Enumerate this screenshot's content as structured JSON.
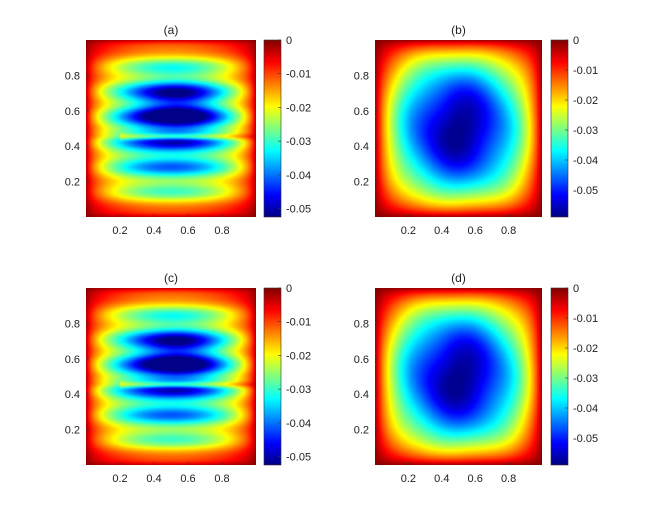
{
  "chart_data": [
    {
      "type": "heatmap",
      "title": "(a)",
      "xticks": [
        "0.2",
        "0.4",
        "0.6",
        "0.8"
      ],
      "yticks": [
        "0.2",
        "0.4",
        "0.6",
        "0.8"
      ],
      "xlim": [
        0,
        1
      ],
      "ylim": [
        0,
        1
      ],
      "clim": [
        -0.0525,
        0
      ],
      "colorbar_ticks": [
        "0",
        "-0.01",
        "-0.02",
        "-0.03",
        "-0.04",
        "-0.05"
      ],
      "colormap": "jet",
      "min_value": -0.052,
      "field": "striated"
    },
    {
      "type": "heatmap",
      "title": "(b)",
      "xticks": [
        "0.2",
        "0.4",
        "0.6",
        "0.8"
      ],
      "yticks": [
        "0.2",
        "0.4",
        "0.6",
        "0.8"
      ],
      "xlim": [
        0,
        1
      ],
      "ylim": [
        0,
        1
      ],
      "clim": [
        -0.059,
        0
      ],
      "colorbar_ticks": [
        "0",
        "-0.01",
        "-0.02",
        "-0.03",
        "-0.04",
        "-0.05"
      ],
      "colormap": "jet",
      "min_value": -0.058,
      "field": "smooth"
    },
    {
      "type": "heatmap",
      "title": "(c)",
      "xticks": [
        "0.2",
        "0.4",
        "0.6",
        "0.8"
      ],
      "yticks": [
        "0.2",
        "0.4",
        "0.6",
        "0.8"
      ],
      "xlim": [
        0,
        1
      ],
      "ylim": [
        0,
        1
      ],
      "clim": [
        -0.0525,
        0
      ],
      "colorbar_ticks": [
        "0",
        "-0.01",
        "-0.02",
        "-0.03",
        "-0.04",
        "-0.05"
      ],
      "colormap": "jet",
      "min_value": -0.052,
      "field": "striated"
    },
    {
      "type": "heatmap",
      "title": "(d)",
      "xticks": [
        "0.2",
        "0.4",
        "0.6",
        "0.8"
      ],
      "yticks": [
        "0.2",
        "0.4",
        "0.6",
        "0.8"
      ],
      "xlim": [
        0,
        1
      ],
      "ylim": [
        0,
        1
      ],
      "clim": [
        -0.059,
        0
      ],
      "colorbar_ticks": [
        "0",
        "-0.01",
        "-0.02",
        "-0.03",
        "-0.04",
        "-0.05"
      ],
      "colormap": "jet",
      "min_value": -0.058,
      "field": "smooth"
    }
  ]
}
